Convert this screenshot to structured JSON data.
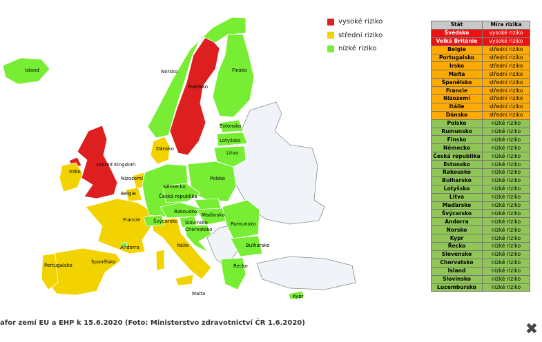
{
  "colors": {
    "high": "#dd1f1f",
    "medium": "#f2d300",
    "low": "#77ee33",
    "nodata": "#f0f3f8",
    "table_high": "#ee1111",
    "table_medium": "#ffaa00",
    "table_low": "#8fc656",
    "table_header": "#c8c8c8"
  },
  "legend": [
    {
      "label": "vysoké riziko",
      "level": "high"
    },
    {
      "label": "střední riziko",
      "level": "medium"
    },
    {
      "label": "nízké riziko",
      "level": "low"
    }
  ],
  "map": {
    "labels": {
      "island": "Island",
      "norsko": "Norsko",
      "svedsko": "Švédsko",
      "finsko": "Finsko",
      "estonsko": "Estonsko",
      "lotyssko": "Lotyšsko",
      "litva": "Litva",
      "dansko": "Dánsko",
      "uk": "United Kingdom",
      "irsko": "Irsko",
      "nizozemi": "Nizozemí",
      "belgie": "Belgie",
      "nemecko": "Německo",
      "polsko": "Polsko",
      "cr": "Česká republika",
      "rakousko": "Rakousko",
      "madarsko": "Maďarsko",
      "svycarsko": "Švýcarsko",
      "slovinsko": "Slovinsko",
      "chorvatsko": "Chorvatsko",
      "rumunsko": "Rumunsko",
      "bulharsko": "Bulharsko",
      "francie": "Francie",
      "andorra": "Andorra",
      "italie": "Itálie",
      "spanelsko": "Španělsko",
      "portugalsko": "Portugalsko",
      "recko": "Řecko",
      "malta": "Malta",
      "kypr": "Kypr"
    }
  },
  "table": {
    "headers": [
      "Stát",
      "Míra rizika"
    ],
    "rows": [
      {
        "state": "Švédsko",
        "risk": "vysoké riziko",
        "level": "high"
      },
      {
        "state": "Velká Británie",
        "risk": "vysoké riziko",
        "level": "high"
      },
      {
        "state": "Belgie",
        "risk": "střední riziko",
        "level": "medium"
      },
      {
        "state": "Portugalsko",
        "risk": "střední riziko",
        "level": "medium"
      },
      {
        "state": "Irsko",
        "risk": "střední riziko",
        "level": "medium"
      },
      {
        "state": "Malta",
        "risk": "střední riziko",
        "level": "medium"
      },
      {
        "state": "Španělsko",
        "risk": "střední riziko",
        "level": "medium"
      },
      {
        "state": "Francie",
        "risk": "střední riziko",
        "level": "medium"
      },
      {
        "state": "Nizozemí",
        "risk": "střední riziko",
        "level": "medium"
      },
      {
        "state": "Itálie",
        "risk": "střední riziko",
        "level": "medium"
      },
      {
        "state": "Dánsko",
        "risk": "střední riziko",
        "level": "medium"
      },
      {
        "state": "Polsko",
        "risk": "nízké riziko",
        "level": "low"
      },
      {
        "state": "Rumunsko",
        "risk": "nízké riziko",
        "level": "low"
      },
      {
        "state": "Finsko",
        "risk": "nízké riziko",
        "level": "low"
      },
      {
        "state": "Německo",
        "risk": "nízké riziko",
        "level": "low"
      },
      {
        "state": "Česká republika",
        "risk": "nízké riziko",
        "level": "low"
      },
      {
        "state": "Estonsko",
        "risk": "nízké riziko",
        "level": "low"
      },
      {
        "state": "Rakousko",
        "risk": "nízké riziko",
        "level": "low"
      },
      {
        "state": "Bulharsko",
        "risk": "nízké riziko",
        "level": "low"
      },
      {
        "state": "Lotyšsko",
        "risk": "nízké riziko",
        "level": "low"
      },
      {
        "state": "Litva",
        "risk": "nízké riziko",
        "level": "low"
      },
      {
        "state": "Maďarsko",
        "risk": "nízké riziko",
        "level": "low"
      },
      {
        "state": "Švýcarsko",
        "risk": "nízké riziko",
        "level": "low"
      },
      {
        "state": "Andorra",
        "risk": "nízké riziko",
        "level": "low"
      },
      {
        "state": "Norsko",
        "risk": "nízké riziko",
        "level": "low"
      },
      {
        "state": "Kypr",
        "risk": "nízké riziko",
        "level": "low"
      },
      {
        "state": "Řecko",
        "risk": "nízké riziko",
        "level": "low"
      },
      {
        "state": "Slovensko",
        "risk": "nízké riziko",
        "level": "low"
      },
      {
        "state": "Chorvatsko",
        "risk": "nízké riziko",
        "level": "low"
      },
      {
        "state": "Island",
        "risk": "nízké riziko",
        "level": "low"
      },
      {
        "state": "Slovinsko",
        "risk": "nízké riziko",
        "level": "low"
      },
      {
        "state": "Lucembursko",
        "risk": "nízké riziko",
        "level": "low"
      }
    ]
  },
  "caption": "afor zemí EU a EHP k 15.6.2020 (Foto: Ministerstvo zdravotnictví ČR 1.6.2020)",
  "close_icon": "close-icon"
}
